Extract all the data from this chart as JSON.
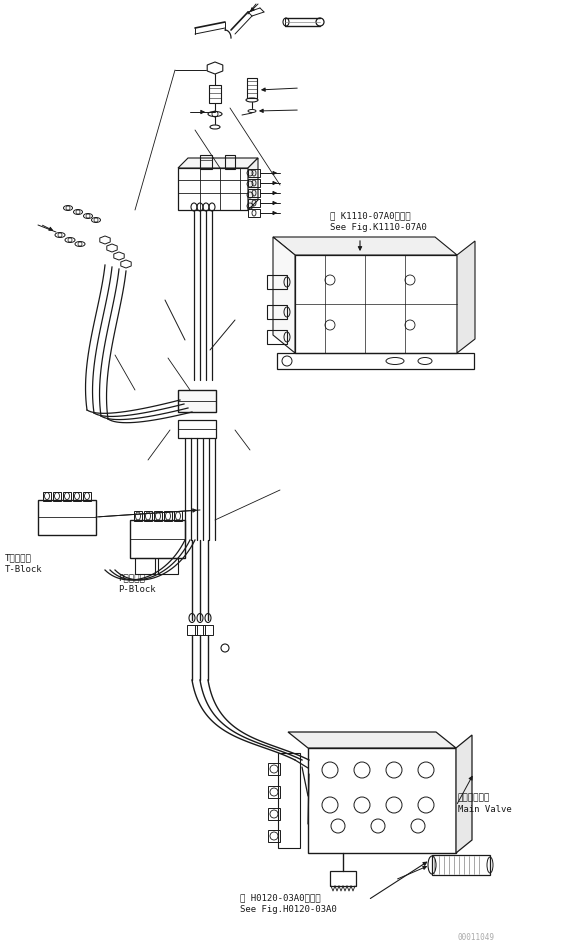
{
  "bg_color": "#ffffff",
  "line_color": "#1a1a1a",
  "fig_width": 5.7,
  "fig_height": 9.5,
  "dpi": 100,
  "watermark": "00011049",
  "t_block_jp": "Tブロック",
  "t_block_en": "T-Block",
  "p_block_jp": "Pブロック",
  "p_block_en": "P-Block",
  "main_valve_jp": "メインバルブ",
  "main_valve_en": "Main Valve",
  "ref1_line1": "第 K1110-07A0図参照",
  "ref1_line2": "See Fig.K1110-07A0",
  "ref2_line1": "第 H0120-03A0図参照",
  "ref2_line2": "See Fig.H0120-03A0",
  "font_size_label": 6.5,
  "font_size_ref": 6.5,
  "font_size_watermark": 5.5
}
